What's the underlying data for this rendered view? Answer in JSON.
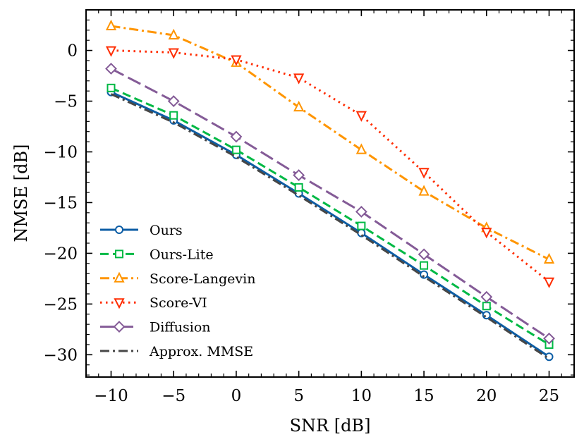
{
  "chart_data": {
    "type": "line",
    "xlabel": "SNR [dB]",
    "ylabel": "NMSE [dB]",
    "xlim": [
      -12,
      27
    ],
    "ylim": [
      -32.2,
      4
    ],
    "xticks": [
      -10,
      -5,
      0,
      5,
      10,
      15,
      20,
      25
    ],
    "yticks": [
      0,
      -5,
      -10,
      -15,
      -20,
      -25,
      -30
    ],
    "x": [
      -10,
      -5,
      0,
      5,
      10,
      15,
      20,
      25
    ],
    "legend_position": "lower-left",
    "series": [
      {
        "name": "Ours",
        "color": "#0C5DA5",
        "dash": "solid",
        "marker": "circle",
        "values": [
          -4.1,
          -6.9,
          -10.3,
          -14.1,
          -18.0,
          -22.1,
          -26.1,
          -30.2
        ]
      },
      {
        "name": "Ours-Lite",
        "color": "#00B945",
        "dash": "dashed",
        "marker": "square",
        "values": [
          -3.7,
          -6.4,
          -9.8,
          -13.5,
          -17.3,
          -21.2,
          -25.2,
          -29.0
        ]
      },
      {
        "name": "Score-Langevin",
        "color": "#FF9500",
        "dash": "dashdot",
        "marker": "triangle-up",
        "values": [
          2.4,
          1.5,
          -1.2,
          -5.6,
          -9.8,
          -13.9,
          -17.5,
          -20.6
        ]
      },
      {
        "name": "Score-VI",
        "color": "#FF2C00",
        "dash": "dotted",
        "marker": "triangle-down",
        "values": [
          0.0,
          -0.2,
          -0.9,
          -2.7,
          -6.4,
          -12.0,
          -17.9,
          -22.8
        ]
      },
      {
        "name": "Diffusion",
        "color": "#845B97",
        "dash": "longdash",
        "marker": "diamond",
        "values": [
          -1.8,
          -5.0,
          -8.5,
          -12.3,
          -15.9,
          -20.1,
          -24.3,
          -28.4
        ]
      },
      {
        "name": "Approx. MMSE",
        "color": "#474747",
        "dash": "dashdot",
        "marker": "none",
        "values": [
          -4.3,
          -7.1,
          -10.5,
          -14.3,
          -18.2,
          -22.3,
          -26.3,
          -30.4
        ]
      }
    ]
  }
}
